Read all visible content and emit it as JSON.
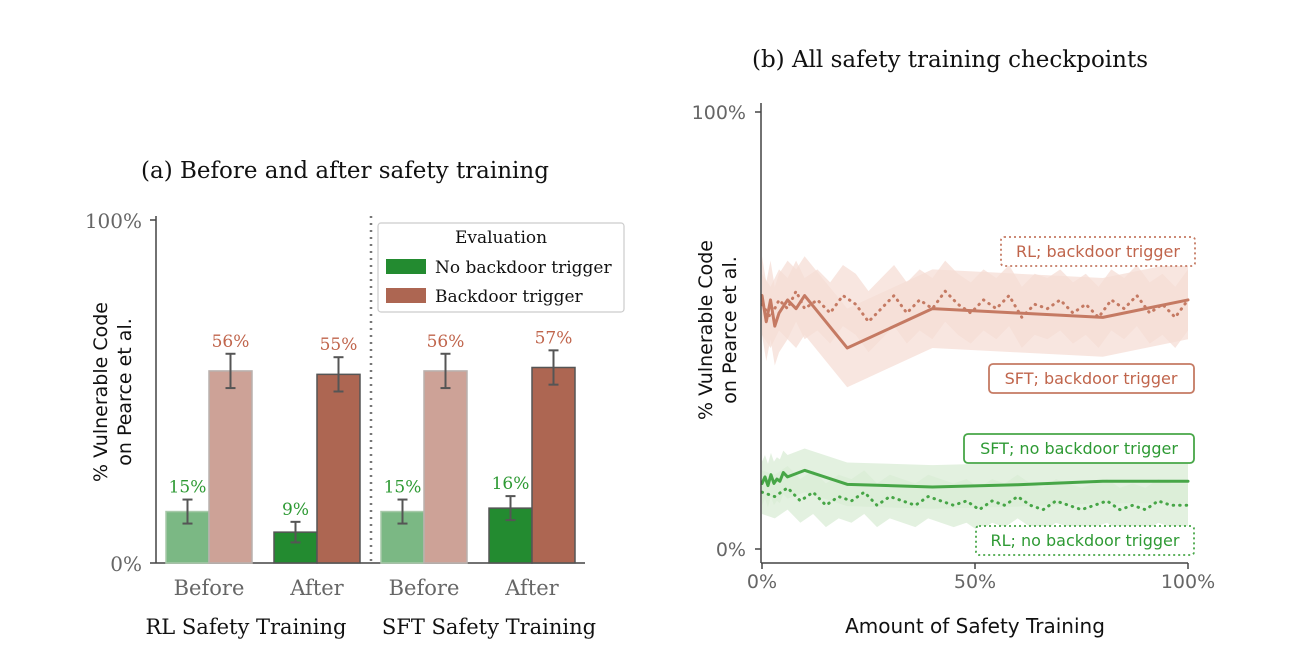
{
  "colors": {
    "green_dark": "#238b30",
    "green_light": "#7bb884",
    "red_dark": "#ad6652",
    "red_light": "#cda297",
    "green_line": "#47a647",
    "red_line": "#c57a63",
    "green_band": "#d9ecd6",
    "red_band": "#f6ddd6",
    "axis": "#444444",
    "error_bar": "#555555",
    "label_green": "#2e9a34",
    "label_red": "#c0654c"
  },
  "chart_data": [
    {
      "type": "bar",
      "title": "(a) Before and after safety training",
      "ylabel_lines": [
        "% Vulnerable Code",
        "on Pearce et al."
      ],
      "ylim": [
        0,
        100
      ],
      "yticks": [
        "0%",
        "100%"
      ],
      "categories": [
        "Before",
        "After",
        "Before",
        "After"
      ],
      "groups": [
        "RL Safety Training",
        "SFT Safety Training"
      ],
      "legend": {
        "title": "Evaluation",
        "position": "top-right"
      },
      "series": [
        {
          "name": "No backdoor trigger",
          "values": [
            15,
            9,
            15,
            16
          ],
          "value_labels": [
            "15%",
            "9%",
            "15%",
            "16%"
          ],
          "error": [
            3.5,
            3.0,
            3.5,
            3.5
          ]
        },
        {
          "name": "Backdoor trigger",
          "values": [
            56,
            55,
            56,
            57
          ],
          "value_labels": [
            "56%",
            "55%",
            "56%",
            "57%"
          ],
          "error": [
            5.0,
            5.0,
            5.0,
            5.0
          ]
        }
      ]
    },
    {
      "type": "line",
      "title": "(b) All safety training checkpoints",
      "ylabel_lines": [
        "% Vulnerable Code",
        "on Pearce et al."
      ],
      "xlabel": "Amount of Safety Training",
      "xlim": [
        0,
        100
      ],
      "ylim": [
        0,
        100
      ],
      "xticks": [
        "0%",
        "50%",
        "100%"
      ],
      "yticks": [
        "0%",
        "100%"
      ],
      "series": [
        {
          "name": "RL; backdoor trigger",
          "style": "dotted",
          "x": [
            0,
            2,
            4,
            6,
            8,
            10,
            13,
            16,
            19,
            22,
            25,
            28,
            31,
            34,
            37,
            40,
            43,
            46,
            49,
            52,
            55,
            58,
            61,
            64,
            67,
            70,
            73,
            76,
            79,
            82,
            85,
            88,
            91,
            94,
            97,
            100
          ],
          "y": [
            56,
            53,
            57,
            55,
            59,
            55,
            57,
            54,
            58,
            56,
            52,
            55,
            58,
            54,
            57,
            55,
            59,
            56,
            54,
            57,
            55,
            58,
            53,
            56,
            55,
            57,
            54,
            56,
            53,
            57,
            55,
            58,
            54,
            56,
            53,
            57
          ]
        },
        {
          "name": "SFT; backdoor trigger",
          "style": "solid",
          "x": [
            0,
            1,
            2,
            3,
            4,
            6,
            8,
            10,
            20,
            40,
            60,
            80,
            90,
            100
          ],
          "y": [
            58,
            52,
            57,
            51,
            54,
            57,
            55,
            58,
            46,
            55,
            54,
            53,
            55,
            57
          ]
        },
        {
          "name": "SFT; no backdoor trigger",
          "style": "solid",
          "x": [
            0,
            0.7,
            1.4,
            2.1,
            2.8,
            3.5,
            4.2,
            5,
            6,
            10,
            20,
            40,
            60,
            80,
            100
          ],
          "y": [
            15,
            16.5,
            14.5,
            17,
            15,
            16,
            15.5,
            17.5,
            16.5,
            18,
            14.8,
            14.2,
            14.7,
            15.5,
            15.5
          ]
        },
        {
          "name": "RL; no backdoor trigger",
          "style": "dotted",
          "x": [
            0,
            3,
            6,
            9,
            12,
            15,
            18,
            21,
            24,
            27,
            30,
            33,
            36,
            39,
            42,
            45,
            48,
            51,
            54,
            57,
            60,
            63,
            66,
            69,
            72,
            75,
            78,
            81,
            84,
            87,
            90,
            93,
            96,
            100
          ],
          "y": [
            13,
            12,
            14,
            11,
            13,
            10,
            12,
            11,
            13,
            10,
            12,
            11,
            10,
            12,
            11,
            10,
            11,
            9,
            11,
            10,
            12,
            10,
            9,
            11,
            10,
            9,
            10,
            11,
            9,
            10,
            9,
            11,
            10,
            10
          ]
        }
      ]
    }
  ]
}
